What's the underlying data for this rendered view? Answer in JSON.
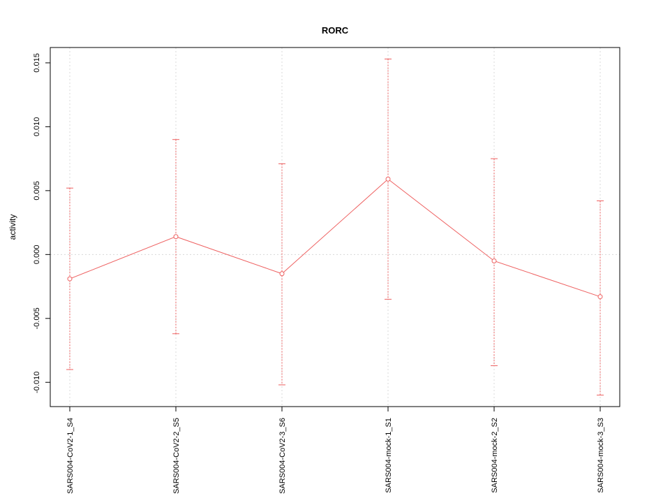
{
  "chart_data": {
    "type": "line",
    "title": "RORC",
    "xlabel": "",
    "ylabel": "activity",
    "categories": [
      "SARS004-CoV2-1_S4",
      "SARS004-CoV2-2_S5",
      "SARS004-CoV2-3_S6",
      "SARS004-mock-1_S1",
      "SARS004-mock-2_S2",
      "SARS004-mock-3_S3"
    ],
    "series": [
      {
        "name": "activity",
        "values": [
          -0.0019,
          0.0014,
          -0.0015,
          0.0059,
          -0.0005,
          -0.0033
        ],
        "upper": [
          0.0052,
          0.009,
          0.0071,
          0.0153,
          0.0075,
          0.0042
        ],
        "lower": [
          -0.009,
          -0.0062,
          -0.0102,
          -0.0035,
          -0.0087,
          -0.011
        ]
      }
    ],
    "yticks": [
      -0.01,
      -0.005,
      0.0,
      0.005,
      0.01,
      0.015
    ],
    "ytick_labels": [
      "-0.010",
      "-0.005",
      "0.000",
      "0.005",
      "0.010",
      "0.015"
    ],
    "ylim": [
      -0.0119,
      0.0162
    ],
    "grid": {
      "vertical_at_categories": true,
      "horizontal_at_zero": true
    },
    "legend": "none",
    "colors": {
      "series": "#ee6060",
      "grid": "#d8d8d8",
      "axis": "#000000",
      "text": "#000000",
      "background": "#ffffff"
    }
  }
}
